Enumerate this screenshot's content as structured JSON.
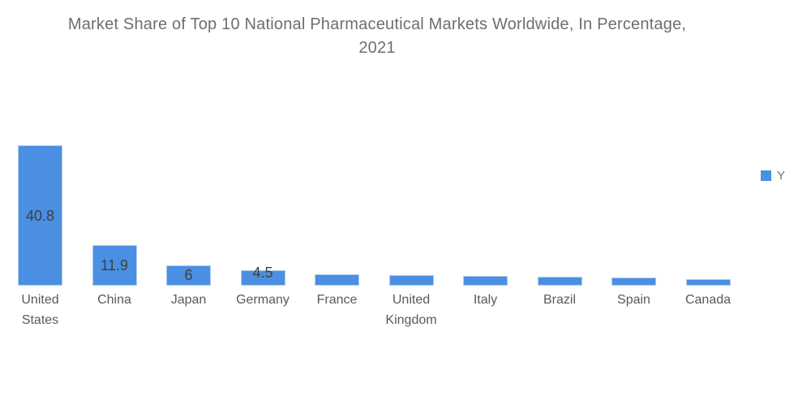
{
  "header": {
    "title_line1": "Market Share of Top 10 National Pharmaceutical Markets Worldwide, In Percentage,",
    "title_line2": "2021"
  },
  "legend": {
    "series_label": "Y",
    "swatch_color": "#4A8FE1"
  },
  "colors": {
    "bar_fill": "#4A8FE1",
    "bar_border": "#AECDF2",
    "title_text": "#6E6E6E",
    "axis_label_text": "#595959",
    "value_label_text": "#3F3F3F",
    "legend_text": "#707070",
    "background": "#FFFFFF"
  },
  "chart_data": {
    "type": "bar",
    "title": "Market Share of Top 10 National Pharmaceutical Markets Worldwide, In Percentage, 2021",
    "categories": [
      "United States",
      "China",
      "Japan",
      "Germany",
      "France",
      "United Kingdom",
      "Italy",
      "Brazil",
      "Spain",
      "Canada"
    ],
    "values": [
      40.8,
      11.9,
      6,
      4.5,
      3.4,
      3.0,
      2.9,
      2.5,
      2.3,
      2.0
    ],
    "value_labels": [
      "40.8",
      "11.9",
      "6",
      "4.5",
      null,
      null,
      null,
      null,
      null,
      null
    ],
    "series": [
      {
        "name": "Y",
        "values": [
          40.8,
          11.9,
          6,
          4.5,
          3.4,
          3.0,
          2.9,
          2.5,
          2.3,
          2.0
        ]
      }
    ],
    "xlabel": "",
    "ylabel": "",
    "ylim": [
      0,
      41
    ],
    "grid": false,
    "axes_hidden": true,
    "legend_position": "right",
    "bar_color": "#4A8FE1"
  }
}
